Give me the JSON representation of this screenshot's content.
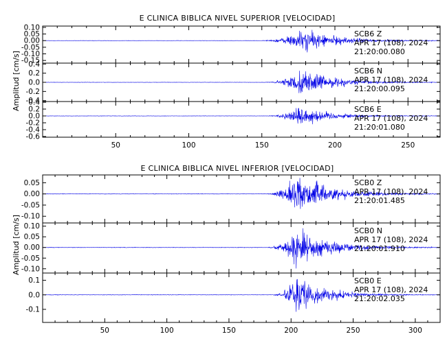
{
  "chart_data": [
    {
      "type": "line",
      "title": "E CLINICA BIBLICA NIVEL SUPERIOR [VELOCIDAD]",
      "ylabel": "Amplitud [cm/s]",
      "xlabel": "",
      "xlim": [
        0,
        272
      ],
      "xticks": [
        50,
        100,
        150,
        200,
        250
      ],
      "xtick_labels": [
        "50",
        "100",
        "150",
        "200",
        "250"
      ],
      "panels": [
        {
          "station": "SCB6  Z",
          "date": "APR 17 (108), 2024",
          "time": "21:20:00.080",
          "ylim": [
            -0.17,
            0.11
          ],
          "yticks": [
            0.1,
            0.05,
            0.0,
            -0.05,
            -0.1,
            -0.15
          ],
          "ytick_labels": [
            "0.10",
            "0.05",
            "0.00",
            "-0.05",
            "-0.10",
            "-0.15"
          ],
          "event": {
            "onset": 148,
            "peak_time": 178,
            "peak_amp": 0.1,
            "decay": 24,
            "pre_noise": 0.0015
          }
        },
        {
          "station": "SCB6  N",
          "date": "APR 17 (108), 2024",
          "time": "21:20:00.095",
          "ylim": [
            -0.42,
            0.42
          ],
          "yticks": [
            0.4,
            0.2,
            0.0,
            -0.2,
            -0.4
          ],
          "ytick_labels": [
            "0.4",
            "0.2",
            "0.0",
            "-0.2",
            "-0.4"
          ],
          "event": {
            "onset": 150,
            "peak_time": 178,
            "peak_amp": 0.33,
            "decay": 22,
            "pre_noise": 0.004
          }
        },
        {
          "station": "SCB6  E",
          "date": "APR 17 (108), 2024",
          "time": "21:20:01.080",
          "ylim": [
            -0.62,
            0.42
          ],
          "yticks": [
            0.4,
            0.2,
            0.0,
            -0.2,
            -0.4,
            -0.6
          ],
          "ytick_labels": [
            "0.4",
            "0.2",
            "0.0",
            "-0.2",
            "-0.4",
            "-0.6"
          ],
          "event": {
            "onset": 152,
            "peak_time": 176,
            "peak_amp": 0.36,
            "decay": 20,
            "pre_noise": 0.006
          }
        }
      ]
    },
    {
      "type": "line",
      "title": "E CLINICA BIBLICA NIVEL INFERIOR [VELOCIDAD]",
      "ylabel": "Amplitud [cm/s]",
      "xlabel": "",
      "xlim": [
        0,
        320
      ],
      "xticks": [
        50,
        100,
        150,
        200,
        250,
        300
      ],
      "xtick_labels": [
        "50",
        "100",
        "150",
        "200",
        "250",
        "300"
      ],
      "panels": [
        {
          "station": "SCB0  Z",
          "date": "APR 17 (108), 2024",
          "time": "21:20:01.485",
          "ylim": [
            -0.13,
            0.085
          ],
          "yticks": [
            0.05,
            0.0,
            -0.05,
            -0.1
          ],
          "ytick_labels": [
            "0.05",
            "0.00",
            "-0.05",
            "-0.10"
          ],
          "event": {
            "onset": 178,
            "peak_time": 206,
            "peak_amp": 0.1,
            "decay": 26,
            "pre_noise": 0.0012
          }
        },
        {
          "station": "SCB0  N",
          "date": "APR 17 (108), 2024",
          "time": "21:20:01.910",
          "ylim": [
            -0.12,
            0.115
          ],
          "yticks": [
            0.1,
            0.05,
            0.0,
            -0.05,
            -0.1
          ],
          "ytick_labels": [
            "0.10",
            "0.05",
            "0.00",
            "-0.05",
            "-0.10"
          ],
          "event": {
            "onset": 180,
            "peak_time": 205,
            "peak_amp": 0.11,
            "decay": 24,
            "pre_noise": 0.0015
          }
        },
        {
          "station": "SCB0  E",
          "date": "APR 17 (108), 2024",
          "time": "21:20:02.035",
          "ylim": [
            -0.19,
            0.15
          ],
          "yticks": [
            0.1,
            0.0,
            -0.1
          ],
          "ytick_labels": [
            "0.1",
            "0.0",
            "-0.1"
          ],
          "event": {
            "onset": 182,
            "peak_time": 205,
            "peak_amp": 0.14,
            "decay": 22,
            "pre_noise": 0.002
          }
        }
      ]
    }
  ]
}
